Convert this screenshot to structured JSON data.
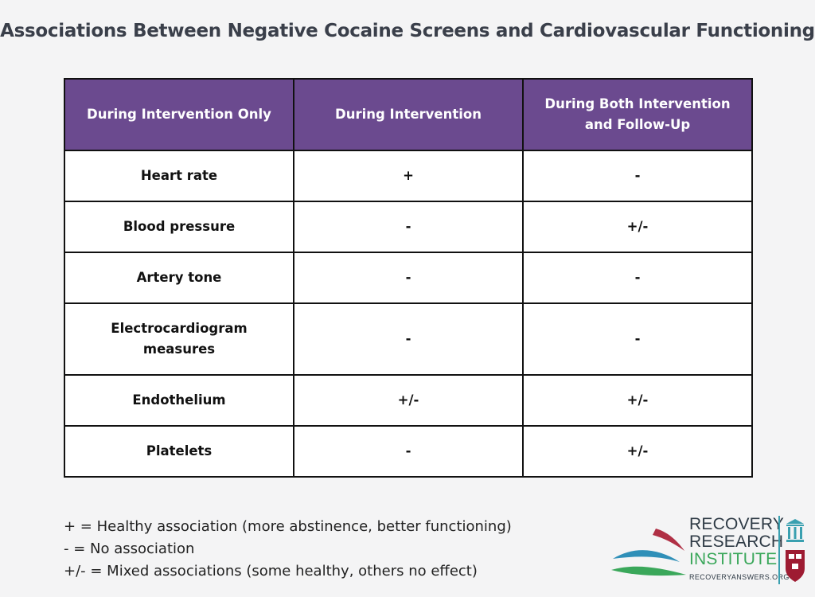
{
  "title": "Associations Between Negative Cocaine Screens and Cardiovascular Functioning",
  "chart_data": {
    "type": "table",
    "columns": [
      "During Intervention Only",
      "During Intervention",
      "During Both Intervention and Follow-Up"
    ],
    "rows": [
      [
        "Heart rate",
        "+",
        "-"
      ],
      [
        "Blood pressure",
        "-",
        "+/-"
      ],
      [
        "Artery tone",
        "-",
        "-"
      ],
      [
        "Electrocardiogram measures",
        "-",
        "-"
      ],
      [
        "Endothelium",
        "+/-",
        "+/-"
      ],
      [
        "Platelets",
        "-",
        "+/-"
      ]
    ]
  },
  "legend": [
    "+ = Healthy association (more abstinence, better functioning)",
    "- = No association",
    "+/- = Mixed associations (some healthy, others no effect)"
  ],
  "logo": {
    "line1": "RECOVERY",
    "line2": "RESEARCH",
    "line3": "INSTITUTE",
    "url": "RECOVERYANSWERS.ORG"
  },
  "colors": {
    "header_bg": "#6b4a8f",
    "header_text": "#ffffff",
    "title": "#3a3f4a",
    "logo_green": "#3aa75a",
    "logo_blue": "#2f8fb8",
    "logo_red": "#b03045"
  }
}
